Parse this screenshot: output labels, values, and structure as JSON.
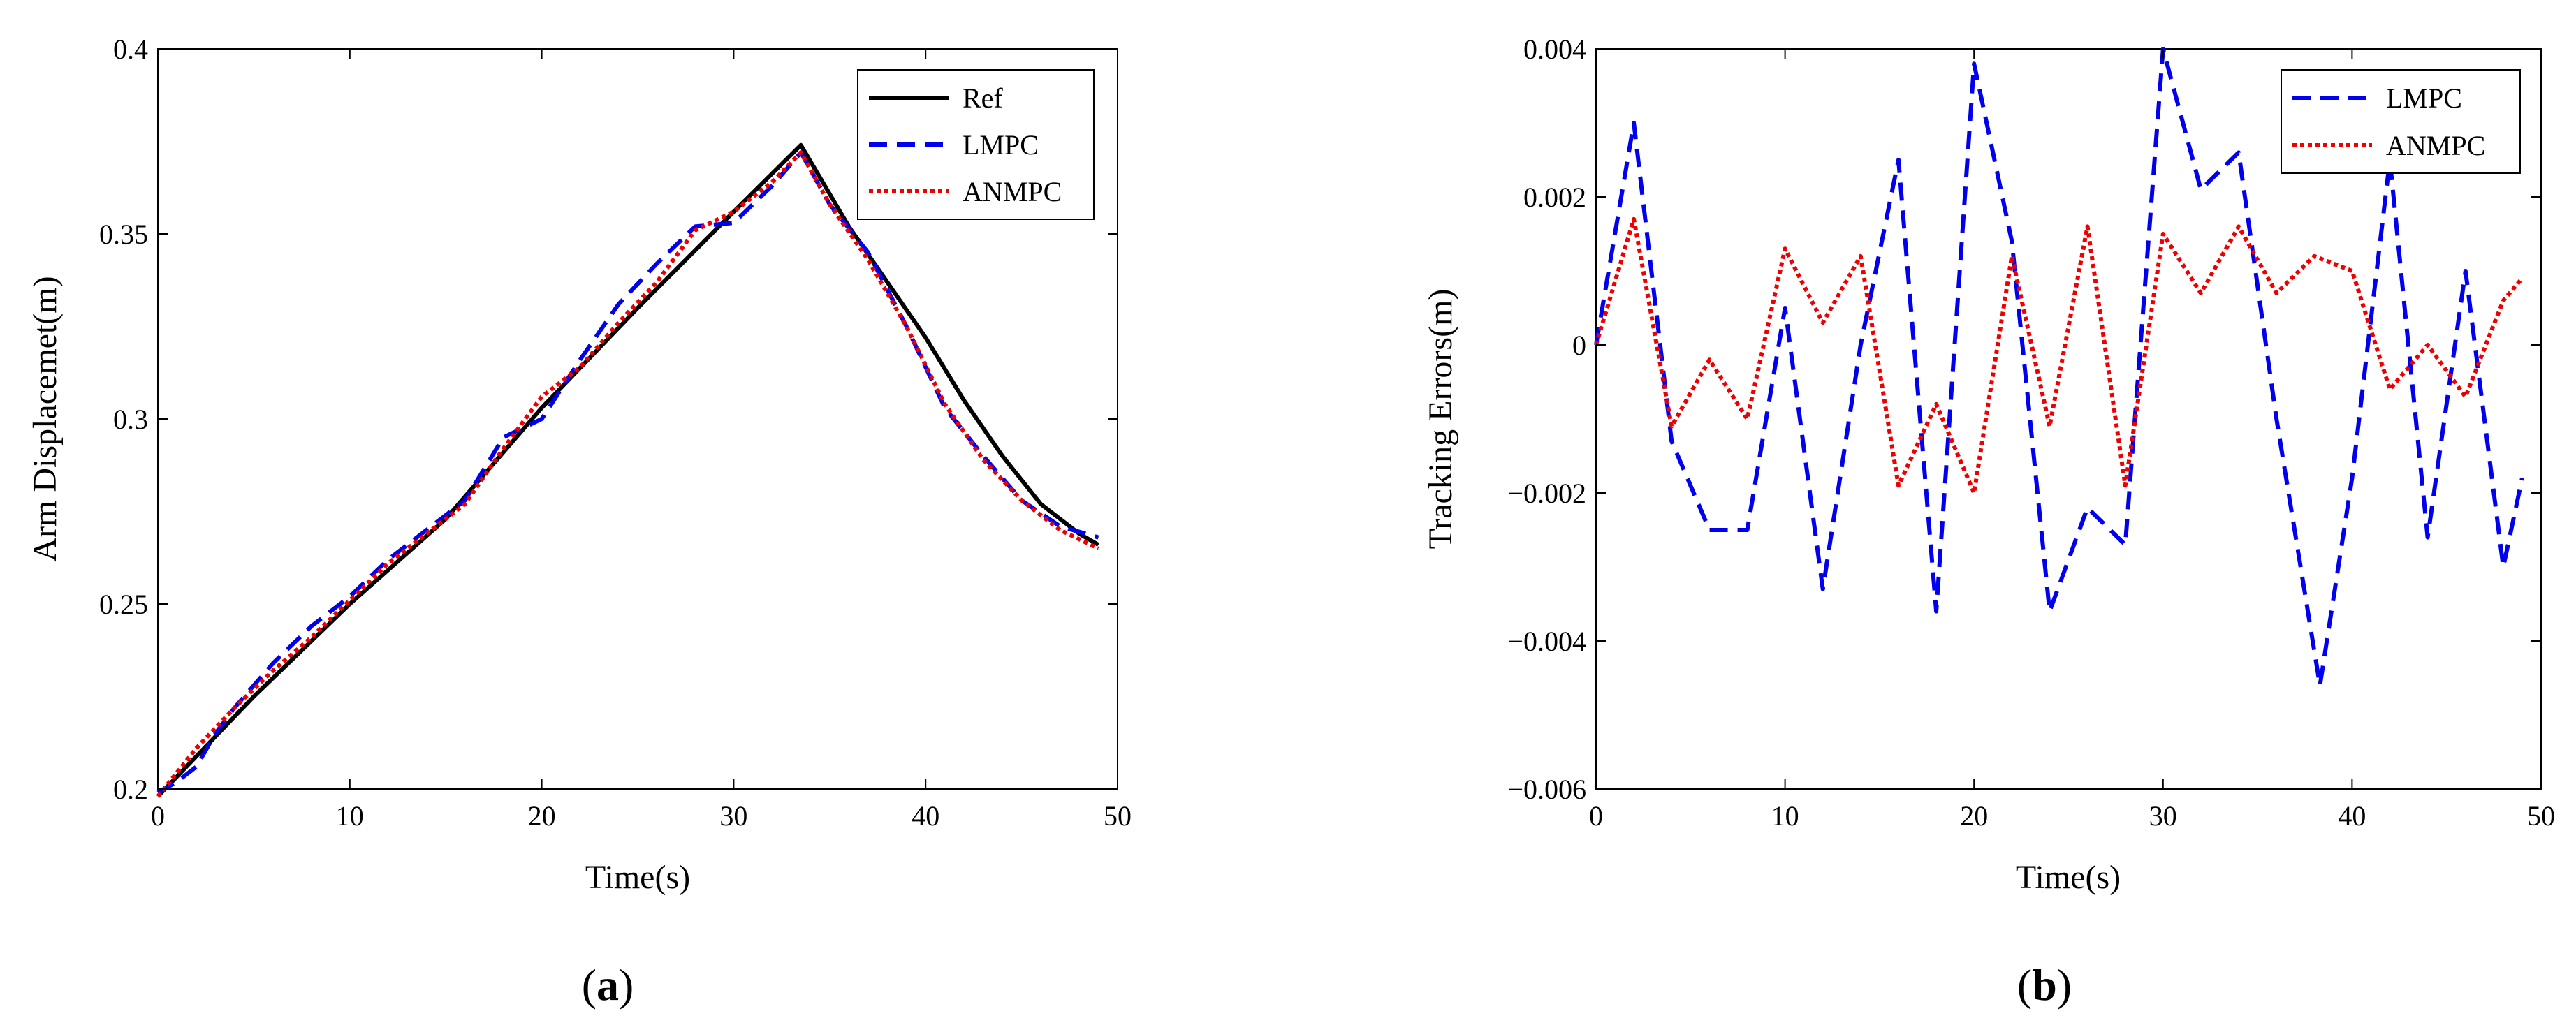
{
  "colors": {
    "ref": "#000000",
    "lmpc": "#0000ee",
    "anmpc": "#ee0000",
    "axis": "#000000",
    "background": "#ffffff"
  },
  "panels": {
    "a": {
      "label_open": "(",
      "label_letter": "a",
      "label_close": ")"
    },
    "b": {
      "label_open": "(",
      "label_letter": "b",
      "label_close": ")"
    }
  },
  "chart_data": [
    {
      "id": "a",
      "type": "line",
      "title": "",
      "xlabel": "Time(s)",
      "ylabel": "Arm Displacemet(m)",
      "xlim": [
        0,
        50
      ],
      "ylim": [
        0.2,
        0.4
      ],
      "xticks": [
        0,
        10,
        20,
        30,
        40,
        50
      ],
      "xtick_labels": [
        "0",
        "10",
        "20",
        "30",
        "40",
        "50"
      ],
      "yticks": [
        0.2,
        0.25,
        0.3,
        0.35,
        0.4
      ],
      "ytick_labels": [
        "0.2",
        "0.25",
        "0.3",
        "0.35",
        "0.4"
      ],
      "grid": false,
      "legend": {
        "position": "top-right",
        "entries": [
          "Ref",
          "LMPC",
          "ANMPC"
        ]
      },
      "series": [
        {
          "name": "Ref",
          "style": "solid",
          "x": [
            0,
            5,
            10,
            15,
            20,
            25,
            30,
            33.5,
            36,
            38,
            40,
            42,
            44,
            46,
            48,
            49
          ],
          "y": [
            0.198,
            0.225,
            0.25,
            0.273,
            0.303,
            0.33,
            0.356,
            0.374,
            0.352,
            0.337,
            0.322,
            0.305,
            0.29,
            0.277,
            0.269,
            0.266
          ]
        },
        {
          "name": "LMPC",
          "style": "dashed",
          "x": [
            0,
            1,
            2,
            3,
            4,
            5,
            6,
            8,
            10,
            12,
            14,
            16,
            18,
            20,
            22,
            24,
            26,
            28,
            30,
            32,
            33.5,
            35,
            37,
            39,
            41,
            43,
            45,
            47,
            49
          ],
          "y": [
            0.199,
            0.202,
            0.206,
            0.215,
            0.222,
            0.228,
            0.234,
            0.244,
            0.252,
            0.262,
            0.27,
            0.278,
            0.295,
            0.3,
            0.316,
            0.331,
            0.342,
            0.352,
            0.353,
            0.363,
            0.372,
            0.358,
            0.345,
            0.325,
            0.303,
            0.29,
            0.278,
            0.271,
            0.268
          ]
        },
        {
          "name": "ANMPC",
          "style": "dotted",
          "x": [
            0,
            2,
            4,
            6,
            8,
            10,
            12,
            14,
            16,
            18,
            20,
            22,
            24,
            26,
            28,
            30,
            32,
            33.5,
            35,
            37,
            39,
            41,
            43,
            45,
            47,
            49
          ],
          "y": [
            0.198,
            0.211,
            0.222,
            0.232,
            0.241,
            0.251,
            0.261,
            0.269,
            0.277,
            0.292,
            0.306,
            0.314,
            0.326,
            0.337,
            0.351,
            0.356,
            0.364,
            0.372,
            0.358,
            0.343,
            0.325,
            0.304,
            0.289,
            0.278,
            0.27,
            0.265
          ]
        }
      ]
    },
    {
      "id": "b",
      "type": "line",
      "title": "",
      "xlabel": "Time(s)",
      "ylabel": "Tracking Errors(m)",
      "xlim": [
        0,
        50
      ],
      "ylim": [
        -0.006,
        0.004
      ],
      "xticks": [
        0,
        10,
        20,
        30,
        40,
        50
      ],
      "xtick_labels": [
        "0",
        "10",
        "20",
        "30",
        "40",
        "50"
      ],
      "yticks": [
        -0.006,
        -0.004,
        -0.002,
        0,
        0.002,
        0.004
      ],
      "ytick_labels": [
        "−0.006",
        "−0.004",
        "−0.002",
        "0",
        "0.002",
        "0.004"
      ],
      "grid": false,
      "legend": {
        "position": "top-right",
        "entries": [
          "LMPC",
          "ANMPC"
        ]
      },
      "series": [
        {
          "name": "LMPC",
          "style": "dashed",
          "x": [
            0,
            2,
            4,
            6,
            8,
            10,
            12,
            14,
            16,
            18,
            20,
            22,
            24,
            26,
            28,
            30,
            32,
            34,
            36,
            38.3,
            40,
            42,
            44,
            46,
            48,
            49
          ],
          "y": [
            0,
            0.003,
            -0.0013,
            -0.0025,
            -0.0025,
            0.0005,
            -0.0033,
            0,
            0.0025,
            -0.0036,
            0.0038,
            0.0014,
            -0.0036,
            -0.0022,
            -0.0027,
            0.004,
            0.0021,
            0.0026,
            -0.001,
            -0.0046,
            -0.0018,
            0.0025,
            -0.0026,
            0.001,
            -0.003,
            -0.0018
          ]
        },
        {
          "name": "ANMPC",
          "style": "dotted",
          "x": [
            0,
            2,
            4,
            6,
            8,
            10,
            12,
            14,
            16,
            18,
            20,
            22,
            24,
            26,
            28,
            30,
            32,
            34,
            36,
            38,
            40,
            42,
            44,
            46,
            48,
            49
          ],
          "y": [
            0,
            0.0017,
            -0.0011,
            -0.0002,
            -0.001,
            0.0013,
            0.0003,
            0.0012,
            -0.0019,
            -0.0008,
            -0.002,
            0.0012,
            -0.0011,
            0.0016,
            -0.0019,
            0.0015,
            0.0007,
            0.0016,
            0.0007,
            0.0012,
            0.001,
            -0.0006,
            0,
            -0.0007,
            0.0006,
            0.0009
          ]
        }
      ]
    }
  ]
}
